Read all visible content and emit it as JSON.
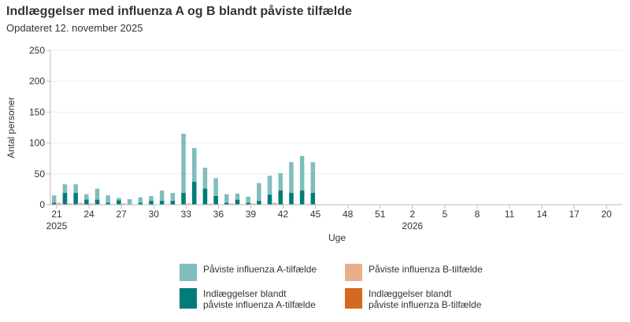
{
  "header": {
    "title": "Indlæggelser med influenza A og B blandt påviste tilfælde",
    "subtitle": "Opdateret 12. november 2025"
  },
  "colors": {
    "a_cases": "#80bdbd",
    "a_hosp": "#007c7a",
    "b_cases": "#ebae8c",
    "b_hosp": "#d4691f",
    "grid": "#eeeeee",
    "axis": "#bbbbbb"
  },
  "legend": {
    "items": [
      {
        "label": "Påviste influenza A-tilfælde",
        "color": "#80bdbd"
      },
      {
        "label": "Påviste influenza B-tilfælde",
        "color": "#ebae8c"
      },
      {
        "label": "Indlæggelser blandt\npåviste influenza A-tilfælde",
        "color": "#007c7a"
      },
      {
        "label": "Indlæggelser blandt\npåviste influenza B-tilfælde",
        "color": "#d4691f"
      }
    ]
  },
  "chart_data": {
    "type": "bar",
    "title": "Indlæggelser med influenza A og B blandt påviste tilfælde",
    "subtitle": "Opdateret 12. november 2025",
    "xlabel": "Uge",
    "ylabel": "Antal personer",
    "ylim": [
      0,
      250
    ],
    "yticks": [
      0,
      50,
      100,
      150,
      200,
      250
    ],
    "grid": true,
    "legend_position": "bottom",
    "x_tick_labels": [
      {
        "week": "21",
        "year": "2025"
      },
      {
        "week": "24",
        "year": ""
      },
      {
        "week": "27",
        "year": ""
      },
      {
        "week": "30",
        "year": ""
      },
      {
        "week": "33",
        "year": ""
      },
      {
        "week": "36",
        "year": ""
      },
      {
        "week": "39",
        "year": ""
      },
      {
        "week": "42",
        "year": ""
      },
      {
        "week": "45",
        "year": ""
      },
      {
        "week": "48",
        "year": ""
      },
      {
        "week": "51",
        "year": ""
      },
      {
        "week": "2",
        "year": "2026"
      },
      {
        "week": "5",
        "year": ""
      },
      {
        "week": "8",
        "year": ""
      },
      {
        "week": "11",
        "year": ""
      },
      {
        "week": "14",
        "year": ""
      },
      {
        "week": "17",
        "year": ""
      },
      {
        "week": "20",
        "year": ""
      }
    ],
    "categories": [
      "21",
      "22",
      "23",
      "24",
      "25",
      "26",
      "27",
      "28",
      "29",
      "30",
      "31",
      "32",
      "33",
      "34",
      "35",
      "36",
      "37",
      "38",
      "39",
      "40",
      "41",
      "42",
      "43",
      "44",
      "45"
    ],
    "series": [
      {
        "name": "Påviste influenza A-tilfælde",
        "values": [
          15,
          33,
          33,
          17,
          26,
          15,
          11,
          9,
          12,
          14,
          23,
          19,
          115,
          92,
          60,
          43,
          17,
          18,
          13,
          35,
          47,
          51,
          69,
          79,
          69
        ]
      },
      {
        "name": "Indlæggelser blandt påviste influenza A-tilfælde",
        "values": [
          3,
          19,
          19,
          8,
          8,
          3,
          7,
          0,
          3,
          6,
          6,
          6,
          19,
          37,
          26,
          14,
          3,
          8,
          3,
          6,
          16,
          23,
          19,
          23,
          19
        ]
      },
      {
        "name": "Påviste influenza B-tilfælde",
        "values": [
          3,
          2,
          3,
          2,
          0,
          0,
          2,
          0,
          0,
          0,
          0,
          0,
          2,
          0,
          2,
          0,
          2,
          0,
          2,
          0,
          3,
          0,
          1,
          1,
          0
        ]
      },
      {
        "name": "Indlæggelser blandt påviste influenza B-tilfælde",
        "values": [
          0,
          0,
          0,
          0,
          0,
          0,
          0,
          0,
          0,
          0,
          0,
          0,
          0,
          0,
          0,
          0,
          0,
          0,
          0,
          0,
          0,
          0,
          0,
          0,
          0
        ]
      }
    ]
  }
}
